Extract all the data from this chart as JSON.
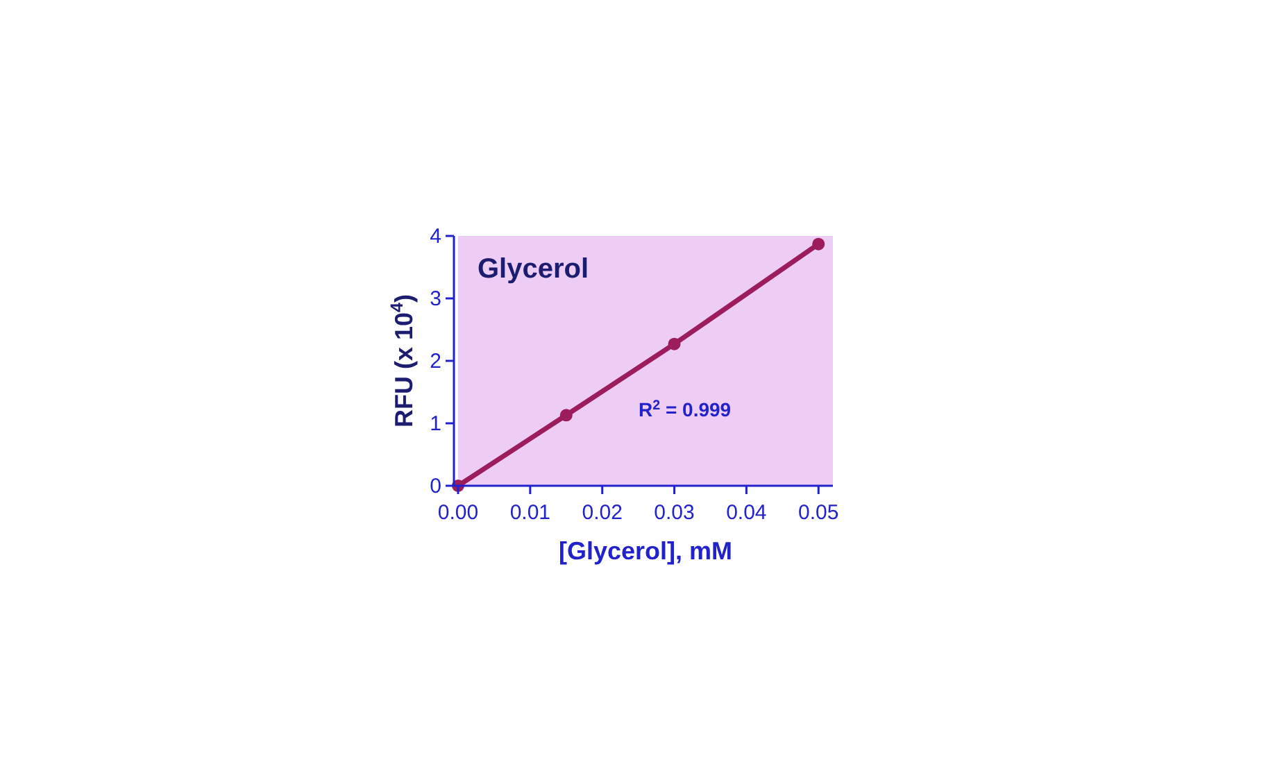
{
  "chart_data": {
    "type": "line",
    "title": "Glycerol",
    "xlabel": "[Glycerol], mM",
    "ylabel": "RFU (x 10$^{4}$)",
    "x": [
      0,
      0.015,
      0.03,
      0.05
    ],
    "series": [
      {
        "color": "#9c1c5c",
        "values": [
          0,
          1.13,
          2.27,
          3.87
        ]
      }
    ],
    "marker": "circle",
    "line_style": "solid",
    "xlim": [
      0,
      0.052
    ],
    "xticks": [
      {
        "value": 0,
        "label": "0.00"
      },
      0.01,
      0.02,
      0.03,
      0.04,
      0.05
    ],
    "ylim": [
      0,
      4
    ],
    "yticks": [
      0,
      1,
      2,
      3,
      4
    ],
    "annotations": [
      "R$^{2}$ = 0.999"
    ]
  }
}
